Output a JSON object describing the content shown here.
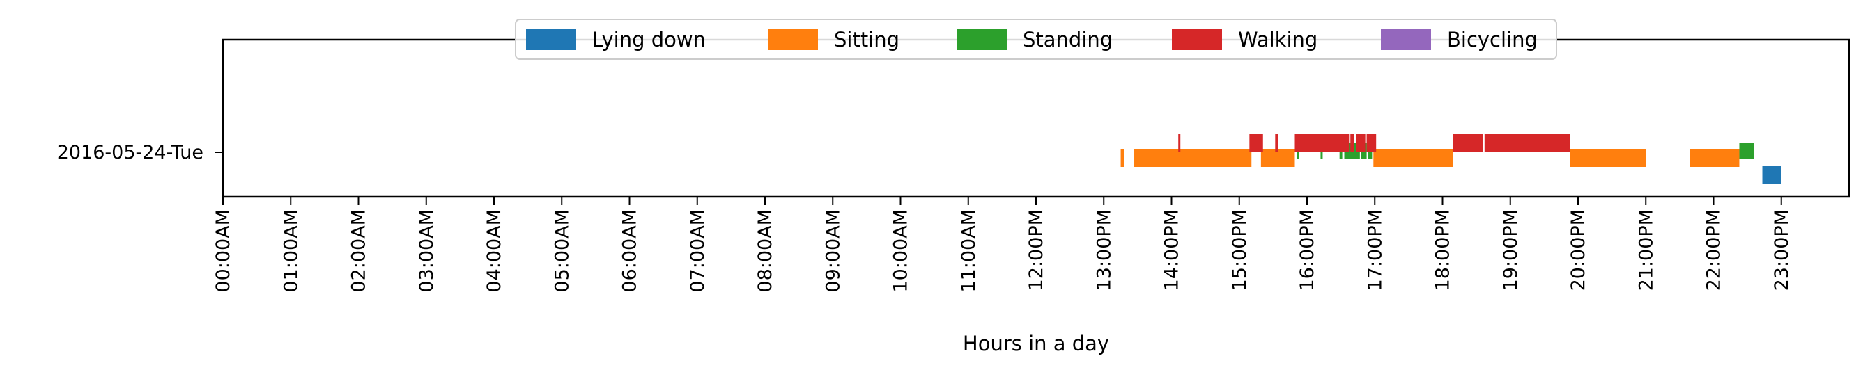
{
  "chart_data": {
    "type": "timeline",
    "title": "",
    "xlabel": "Hours in a day",
    "ylabel": "",
    "xlim": [
      0,
      24
    ],
    "day_label": "2016-05-24-Tue",
    "legend_placement": "top-center",
    "grid": false,
    "x_tick_labels": [
      "00:00AM",
      "01:00AM",
      "02:00AM",
      "03:00AM",
      "04:00AM",
      "05:00AM",
      "06:00AM",
      "07:00AM",
      "08:00AM",
      "09:00AM",
      "10:00AM",
      "11:00AM",
      "12:00PM",
      "13:00PM",
      "14:00PM",
      "15:00PM",
      "16:00PM",
      "17:00PM",
      "18:00PM",
      "19:00PM",
      "20:00PM",
      "21:00PM",
      "22:00PM",
      "23:00PM"
    ],
    "series": [
      {
        "name": "Lying down",
        "color": "#1f77b4",
        "intervals": [
          [
            22.72,
            23.0
          ]
        ]
      },
      {
        "name": "Sitting",
        "color": "#ff7f0e",
        "intervals": [
          [
            13.25,
            13.3
          ],
          [
            13.45,
            15.18
          ],
          [
            15.32,
            15.82
          ],
          [
            16.98,
            18.15
          ],
          [
            19.88,
            21.0
          ],
          [
            21.65,
            22.38
          ]
        ]
      },
      {
        "name": "Standing",
        "color": "#2ca02c",
        "intervals": [
          [
            15.85,
            15.88
          ],
          [
            16.2,
            16.23
          ],
          [
            16.48,
            16.52
          ],
          [
            16.55,
            16.78
          ],
          [
            16.8,
            16.88
          ],
          [
            16.9,
            16.96
          ],
          [
            22.38,
            22.6
          ]
        ]
      },
      {
        "name": "Walking",
        "color": "#d62728",
        "intervals": [
          [
            14.1,
            14.13
          ],
          [
            15.15,
            15.35
          ],
          [
            15.53,
            15.57
          ],
          [
            15.82,
            16.62
          ],
          [
            16.64,
            16.69
          ],
          [
            16.72,
            16.86
          ],
          [
            16.88,
            17.02
          ],
          [
            18.15,
            18.6
          ],
          [
            18.62,
            19.88
          ]
        ]
      },
      {
        "name": "Bicycling",
        "color": "#9467bd",
        "intervals": []
      }
    ]
  }
}
